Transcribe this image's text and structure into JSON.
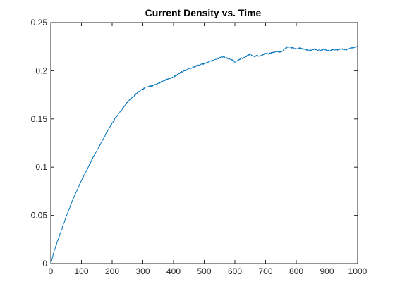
{
  "chart_data": {
    "type": "line",
    "title": "Current Density vs. Time",
    "xlabel": "",
    "ylabel": "",
    "xlim": [
      0,
      1000
    ],
    "ylim": [
      0,
      0.25
    ],
    "xticks": [
      0,
      100,
      200,
      300,
      400,
      500,
      600,
      700,
      800,
      900,
      1000
    ],
    "yticks": [
      0,
      0.05,
      0.1,
      0.15,
      0.2,
      0.25
    ],
    "xtick_labels": [
      "0",
      "100",
      "200",
      "300",
      "400",
      "500",
      "600",
      "700",
      "800",
      "900",
      "1000"
    ],
    "ytick_labels": [
      "0",
      "0.05",
      "0.1",
      "0.15",
      "0.2",
      "0.25"
    ],
    "grid": false,
    "line_color": "#0072BD",
    "axis_color": "#262626",
    "series": [
      {
        "name": "current density",
        "x": [
          0,
          10,
          20,
          30,
          40,
          50,
          60,
          70,
          80,
          90,
          100,
          110,
          120,
          130,
          140,
          150,
          160,
          170,
          180,
          190,
          200,
          210,
          220,
          230,
          240,
          250,
          260,
          270,
          280,
          290,
          300,
          310,
          320,
          330,
          340,
          350,
          360,
          370,
          380,
          390,
          400,
          410,
          420,
          430,
          440,
          450,
          460,
          470,
          480,
          490,
          500,
          510,
          520,
          530,
          540,
          550,
          560,
          570,
          580,
          590,
          600,
          610,
          620,
          630,
          640,
          650,
          660,
          670,
          680,
          690,
          700,
          710,
          720,
          730,
          740,
          750,
          760,
          770,
          780,
          790,
          800,
          810,
          820,
          830,
          840,
          850,
          860,
          870,
          880,
          890,
          900,
          910,
          920,
          930,
          940,
          950,
          960,
          970,
          980,
          990,
          1000
        ],
        "values": [
          0.0,
          0.012,
          0.022,
          0.031,
          0.04,
          0.049,
          0.057,
          0.065,
          0.072,
          0.079,
          0.086,
          0.092,
          0.098,
          0.105,
          0.111,
          0.117,
          0.123,
          0.129,
          0.135,
          0.141,
          0.146,
          0.151,
          0.155,
          0.159,
          0.163,
          0.167,
          0.17,
          0.173,
          0.176,
          0.179,
          0.181,
          0.183,
          0.184,
          0.185,
          0.186,
          0.187,
          0.189,
          0.19,
          0.191,
          0.192,
          0.193,
          0.195,
          0.197,
          0.199,
          0.2,
          0.202,
          0.203,
          0.205,
          0.206,
          0.207,
          0.208,
          0.209,
          0.21,
          0.211,
          0.212,
          0.213,
          0.214,
          0.213,
          0.212,
          0.211,
          0.209,
          0.211,
          0.213,
          0.214,
          0.216,
          0.218,
          0.215,
          0.216,
          0.215,
          0.216,
          0.218,
          0.217,
          0.218,
          0.219,
          0.22,
          0.219,
          0.222,
          0.225,
          0.225,
          0.224,
          0.223,
          0.224,
          0.223,
          0.222,
          0.221,
          0.221,
          0.222,
          0.221,
          0.221,
          0.222,
          0.221,
          0.221,
          0.222,
          0.222,
          0.223,
          0.223,
          0.222,
          0.223,
          0.224,
          0.224,
          0.225
        ]
      }
    ]
  }
}
